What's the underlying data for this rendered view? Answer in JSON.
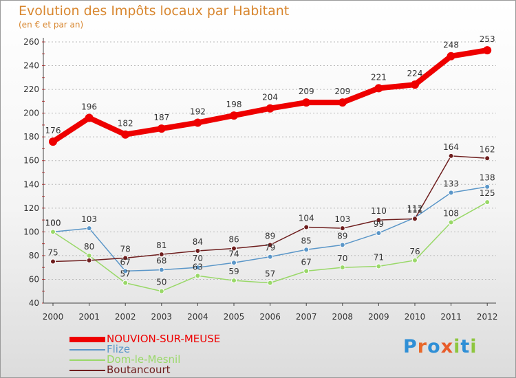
{
  "chart_data": {
    "type": "line",
    "title": "Evolution des Impôts locaux par Habitant",
    "subtitle": "(en € et par an)",
    "xlabel": "",
    "ylabel": "",
    "ylim": [
      40,
      260
    ],
    "yticks": [
      40,
      60,
      80,
      100,
      120,
      140,
      160,
      180,
      200,
      220,
      240,
      260
    ],
    "grid": "horizontal dashed",
    "legend_position": "bottom-left",
    "categories": [
      "2000",
      "2001",
      "2002",
      "2003",
      "2004",
      "2005",
      "2006",
      "2007",
      "2008",
      "2009",
      "2010",
      "2011",
      "2012"
    ],
    "series": [
      {
        "name": "NOUVION-SUR-MEUSE",
        "color": "#ee0000",
        "values": [
          176,
          196,
          182,
          187,
          192,
          198,
          204,
          209,
          209,
          221,
          224,
          248,
          253
        ]
      },
      {
        "name": "Flize",
        "color": "#5a96c8",
        "values": [
          100,
          103,
          67,
          68,
          70,
          74,
          79,
          85,
          89,
          99,
          112,
          133,
          138
        ]
      },
      {
        "name": "Dom-le-Mesnil",
        "color": "#99d868",
        "values": [
          100,
          80,
          57,
          50,
          63,
          59,
          57,
          67,
          70,
          71,
          76,
          108,
          125
        ]
      },
      {
        "name": "Boutancourt",
        "color": "#6e1e1e",
        "values": [
          75,
          76,
          78,
          81,
          84,
          86,
          89,
          104,
          103,
          110,
          111,
          164,
          162
        ]
      }
    ],
    "data_labels": [
      {
        "series": "NOUVION-SUR-MEUSE",
        "labels": [
          "176",
          "196",
          "182",
          "187",
          "192",
          "198",
          "204",
          "209",
          "209",
          "221",
          "224",
          "248",
          "253"
        ]
      },
      {
        "series": "Flize",
        "labels": [
          "100",
          "103",
          "67",
          "68",
          "70",
          "74",
          "79",
          "85",
          "89",
          "99",
          "112",
          "133",
          "138"
        ]
      },
      {
        "series": "Dom-le-Mesnil",
        "labels": [
          "100",
          "80",
          "57",
          "50",
          "63",
          "59",
          "57",
          "67",
          "70",
          "71",
          "76",
          "108",
          "125"
        ]
      },
      {
        "series": "Boutancourt",
        "labels": [
          "75",
          "",
          "78",
          "81",
          "84",
          "86",
          "89",
          "104",
          "103",
          "110",
          "111",
          "164",
          "162"
        ]
      }
    ]
  },
  "brand": {
    "text": "Proxiti",
    "colors": [
      "#2f8fd6",
      "#e8682a",
      "#2f8fd6",
      "#e85c2a",
      "#8ec63f",
      "#2f8fd6",
      "#8ec63f"
    ]
  }
}
